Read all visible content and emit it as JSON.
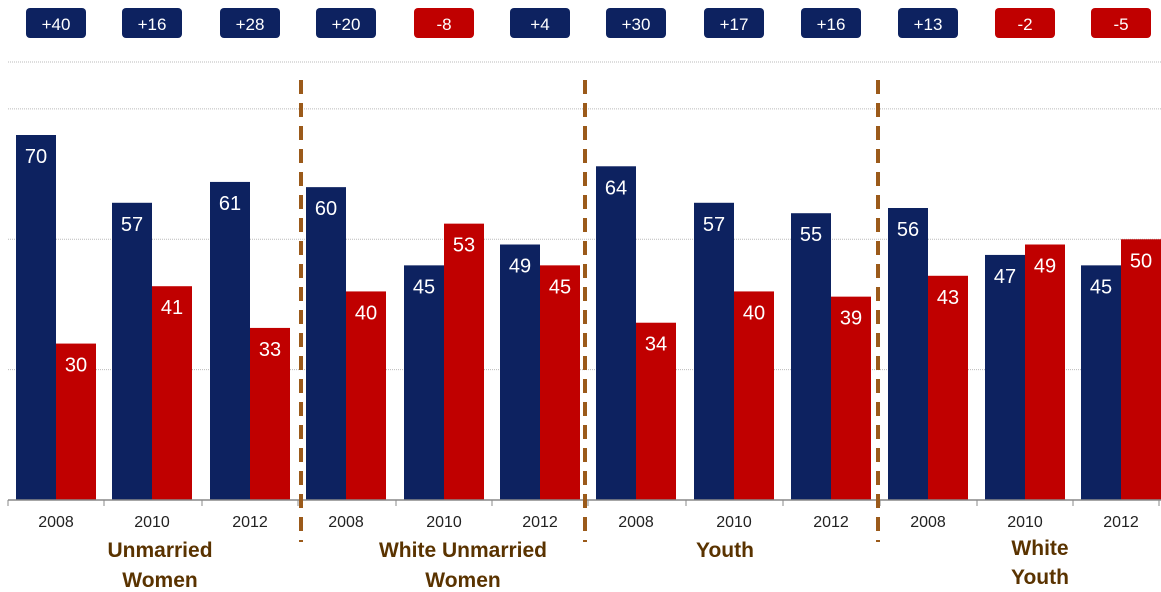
{
  "colors": {
    "dem": "#0d2260",
    "rep": "#c00000",
    "divider": "#9b5a1a",
    "group_text": "#5a3300",
    "grid": "#bbbbbb",
    "axis": "#888888"
  },
  "chart_data": {
    "type": "bar",
    "ylim": [
      0,
      84
    ],
    "gridlines": [
      25,
      50,
      75
    ],
    "margins": [
      "+40",
      "+16",
      "+28",
      "+20",
      "-8",
      "+4",
      "+30",
      "+17",
      "+16",
      "+13",
      "-2",
      "-5"
    ],
    "groups": [
      {
        "label_lines": [
          "Unmarried",
          "Women"
        ],
        "categories": [
          "2008",
          "2010",
          "2012"
        ],
        "series": [
          {
            "values": [
              70,
              57,
              61
            ]
          },
          {
            "values": [
              30,
              41,
              33
            ]
          }
        ]
      },
      {
        "label_lines": [
          "White Unmarried",
          "Women"
        ],
        "categories": [
          "2008",
          "2010",
          "2012"
        ],
        "series": [
          {
            "values": [
              60,
              45,
              49
            ]
          },
          {
            "values": [
              40,
              53,
              45
            ]
          }
        ]
      },
      {
        "label_lines": [
          "Youth"
        ],
        "categories": [
          "2008",
          "2010",
          "2012"
        ],
        "series": [
          {
            "values": [
              64,
              57,
              55
            ]
          },
          {
            "values": [
              34,
              40,
              39
            ]
          }
        ]
      },
      {
        "label_lines": [
          "White",
          "Youth"
        ],
        "categories": [
          "2008",
          "2010",
          "2012"
        ],
        "series": [
          {
            "values": [
              56,
              47,
              45
            ]
          },
          {
            "values": [
              43,
              49,
              50
            ]
          }
        ]
      }
    ]
  }
}
